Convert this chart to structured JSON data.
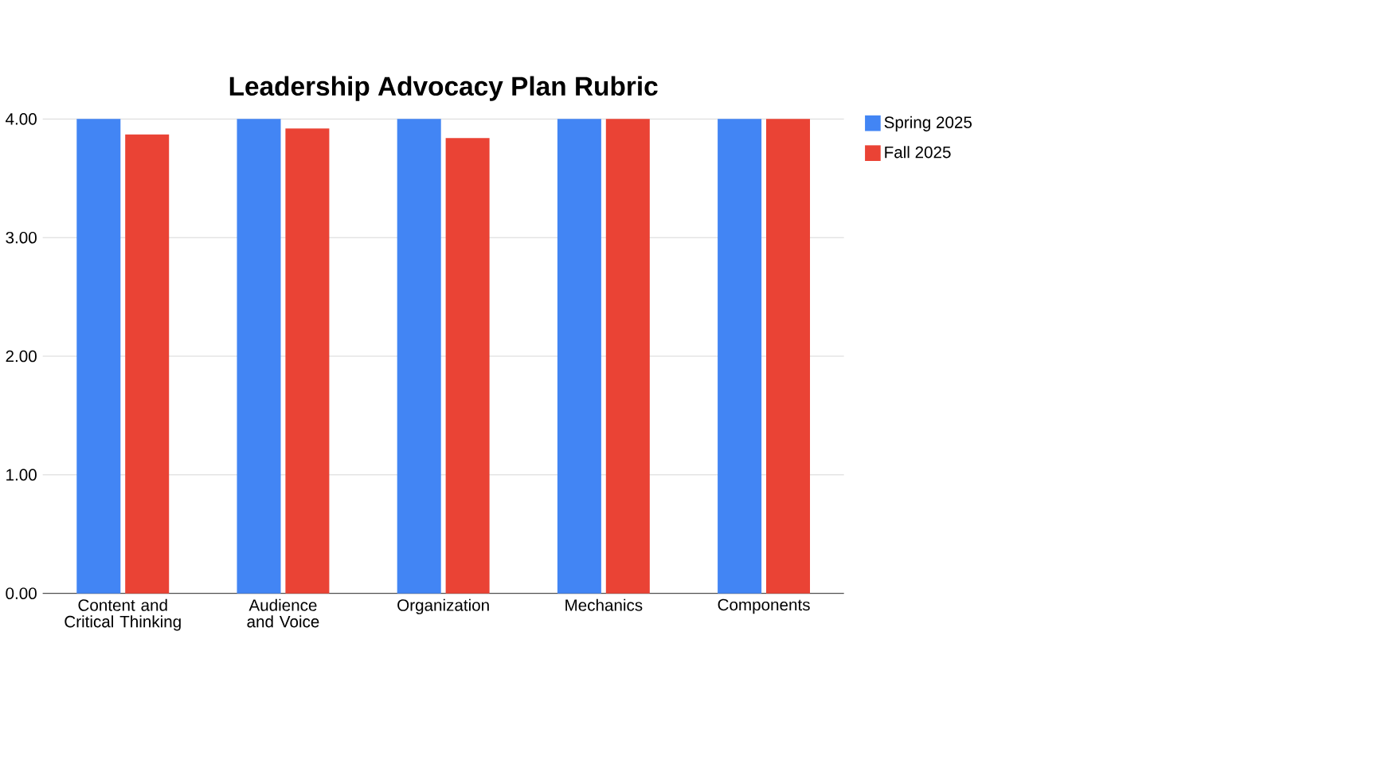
{
  "chart_data": {
    "type": "bar",
    "title": "Leadership Advocacy Plan Rubric",
    "categories": [
      "Content and Critical Thinking",
      "Audience and Voice",
      "Organization",
      "Mechanics",
      "Components"
    ],
    "series": [
      {
        "name": "Spring 2025",
        "color": "#4285f4",
        "values": [
          4.0,
          4.0,
          4.0,
          4.0,
          4.0
        ]
      },
      {
        "name": "Fall 2025",
        "color": "#ea4335",
        "values": [
          3.87,
          3.92,
          3.84,
          4.0,
          4.0
        ]
      }
    ],
    "ylim": [
      0,
      4
    ],
    "yticks": [
      {
        "value": 0,
        "label": "0.00"
      },
      {
        "value": 1,
        "label": "1.00"
      },
      {
        "value": 2,
        "label": "2.00"
      },
      {
        "value": 3,
        "label": "3.00"
      },
      {
        "value": 4,
        "label": "4.00"
      }
    ],
    "grid": "y",
    "legend": "top right"
  }
}
